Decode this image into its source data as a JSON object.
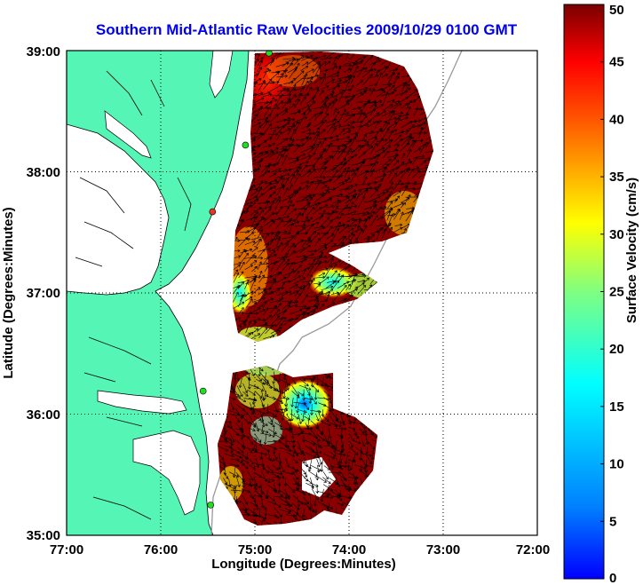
{
  "chart_data": {
    "type": "heatmap",
    "title": "Southern Mid-Atlantic Raw Velocities 2009/10/29 0100 GMT",
    "xlabel": "Longitude (Degrees:Minutes)",
    "ylabel": "Latitude (Degrees:Minutes)",
    "x_ticks": [
      "77:00",
      "76:00",
      "75:00",
      "74:00",
      "73:00",
      "72:00"
    ],
    "y_ticks": [
      "39:00",
      "38:00",
      "37:00",
      "36:00",
      "35:00"
    ],
    "x_tick_values": [
      -77,
      -76,
      -75,
      -74,
      -73,
      -72
    ],
    "y_tick_values": [
      39,
      38,
      37,
      36,
      35
    ],
    "xlim": [
      -77,
      -72
    ],
    "ylim": [
      35,
      39
    ],
    "grid": true,
    "colorbar": {
      "label": "Surface Velocity (cm/s)",
      "range": [
        0,
        50
      ],
      "ticks": [
        "0",
        "5",
        "10",
        "15",
        "20",
        "25",
        "30",
        "35",
        "40",
        "45",
        "50"
      ],
      "colormap": "jet"
    },
    "colors": {
      "land": "#55f5b5",
      "coast": "#000000",
      "vector": "#000000",
      "grid": "#000000",
      "station": "#22dd22",
      "station_alert": "#ee3322"
    },
    "stations": [
      {
        "lon": -74.85,
        "lat": 38.98,
        "status": "ok"
      },
      {
        "lon": -75.1,
        "lat": 38.22,
        "status": "ok"
      },
      {
        "lon": -75.45,
        "lat": 37.67,
        "status": "alert"
      },
      {
        "lon": -75.55,
        "lat": 36.19,
        "status": "ok"
      },
      {
        "lon": -75.47,
        "lat": 35.25,
        "status": "ok"
      }
    ]
  }
}
